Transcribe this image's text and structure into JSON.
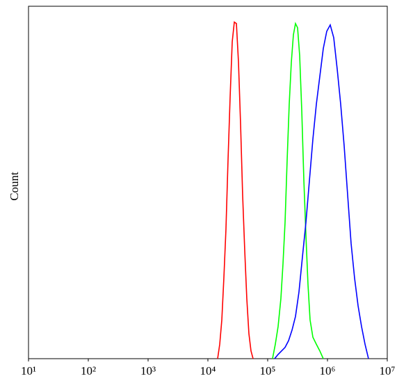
{
  "chart_data": {
    "type": "line",
    "ylabel": "Count",
    "xscale": "log",
    "xlim": [
      10,
      10000000
    ],
    "xticks": [
      {
        "value": 10,
        "label": "10¹"
      },
      {
        "value": 100,
        "label": "10²"
      },
      {
        "value": 1000,
        "label": "10³"
      },
      {
        "value": 10000,
        "label": "10⁴"
      },
      {
        "value": 100000,
        "label": "10⁵"
      },
      {
        "value": 1000000,
        "label": "10⁶"
      },
      {
        "value": 10000000,
        "label": "10⁷"
      }
    ],
    "ylim": [
      0,
      100
    ],
    "grid": false,
    "series": [
      {
        "color": "#ff0000",
        "x": [
          14550,
          15780,
          17100,
          18500,
          20050,
          21730,
          23550,
          25530,
          27670,
          29990,
          32510,
          35240,
          38100,
          41300,
          44770,
          48530,
          52600,
          57000
        ],
        "values": [
          0,
          4.1,
          11,
          22.9,
          36.7,
          56.4,
          74.2,
          89.9,
          95.5,
          95.1,
          84,
          66.3,
          46.5,
          30.8,
          17,
          7.1,
          2.2,
          0
        ]
      },
      {
        "color": "#00ff00",
        "x": [
          120500,
          134200,
          149300,
          166200,
          180200,
          195300,
          211700,
          229200,
          248400,
          269200,
          291800,
          316200,
          342700,
          371500,
          402600,
          436400,
          472100,
          511700,
          570200,
          651600,
          744700,
          851100
        ],
        "values": [
          0,
          4.1,
          9.1,
          17,
          26.8,
          38.7,
          56.4,
          72.2,
          84,
          91.9,
          95.1,
          93.9,
          86,
          70.4,
          50.7,
          34.9,
          21.1,
          11,
          6.1,
          4.1,
          2.2,
          0
        ]
      },
      {
        "color": "#0000ff",
        "x": [
          130600,
          149300,
          171000,
          195300,
          223400,
          255400,
          291800,
          333400,
          381000,
          436400,
          498700,
          570200,
          651600,
          744700,
          851100,
          972800,
          1112000,
          1272000,
          1454000,
          1663000,
          1901000,
          2173000,
          2484000,
          2838000,
          3251000,
          3715000,
          4246000,
          4853000
        ],
        "values": [
          0,
          1.2,
          2.2,
          3.2,
          5.1,
          8.1,
          12,
          18.9,
          28.8,
          38.7,
          50.5,
          62.3,
          72.2,
          80.1,
          88,
          92.9,
          94.7,
          91.1,
          82.2,
          72.2,
          60.4,
          46.5,
          32.7,
          22.9,
          15,
          9.1,
          4.1,
          0
        ]
      }
    ]
  }
}
